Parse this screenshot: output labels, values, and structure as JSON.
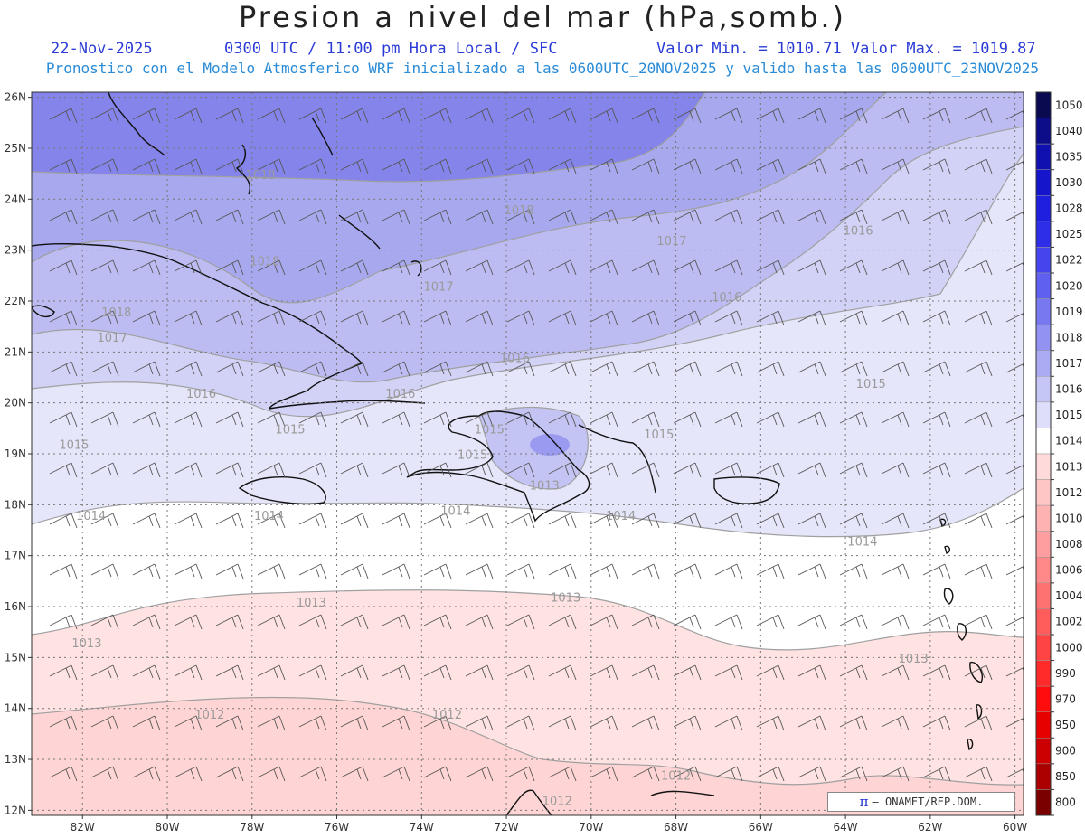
{
  "header": {
    "title": "Presion a nivel del mar (hPa,somb.)",
    "date": "22-Nov-2025",
    "time": "0300 UTC / 11:00 pm Hora Local / SFC",
    "min_max": "Valor Min. = 1010.71  Valor Max. = 1019.87",
    "model_info": "Pronostico con el Modelo Atmosferico WRF inicializado a las 0600UTC_20NOV2025 y valido hasta las  0600UTC_23NOV2025"
  },
  "map": {
    "lon_range": [
      -83.2,
      -59.8
    ],
    "lat_range": [
      11.9,
      26.1
    ],
    "lon_ticks": [
      "82W",
      "80W",
      "78W",
      "76W",
      "74W",
      "72W",
      "70W",
      "68W",
      "66W",
      "64W",
      "62W",
      "60W"
    ],
    "lon_tick_values": [
      -82,
      -80,
      -78,
      -76,
      -74,
      -72,
      -70,
      -68,
      -66,
      -64,
      -62,
      -60
    ],
    "lat_ticks": [
      "26N",
      "25N",
      "24N",
      "23N",
      "22N",
      "21N",
      "20N",
      "19N",
      "18N",
      "17N",
      "16N",
      "15N",
      "14N",
      "13N",
      "12N"
    ],
    "lat_tick_values": [
      26,
      25,
      24,
      23,
      22,
      21,
      20,
      19,
      18,
      17,
      16,
      15,
      14,
      13,
      12
    ],
    "contour_labels": [
      {
        "text": "1018",
        "lon": -77.8,
        "lat": 24.4
      },
      {
        "text": "1018",
        "lon": -71.7,
        "lat": 23.7
      },
      {
        "text": "1017",
        "lon": -68.1,
        "lat": 23.1
      },
      {
        "text": "1016",
        "lon": -63.7,
        "lat": 23.3
      },
      {
        "text": "1018",
        "lon": -77.7,
        "lat": 22.7
      },
      {
        "text": "1017",
        "lon": -73.6,
        "lat": 22.2
      },
      {
        "text": "1016",
        "lon": -66.8,
        "lat": 22.0
      },
      {
        "text": "1018",
        "lon": -81.2,
        "lat": 21.7
      },
      {
        "text": "1017",
        "lon": -81.3,
        "lat": 21.2
      },
      {
        "text": "1016",
        "lon": -71.8,
        "lat": 20.8
      },
      {
        "text": "1015",
        "lon": -63.4,
        "lat": 20.3
      },
      {
        "text": "1016",
        "lon": -79.2,
        "lat": 20.1
      },
      {
        "text": "1016",
        "lon": -74.5,
        "lat": 20.1
      },
      {
        "text": "1015",
        "lon": -77.1,
        "lat": 19.4
      },
      {
        "text": "1015",
        "lon": -72.4,
        "lat": 19.4
      },
      {
        "text": "1015",
        "lon": -68.4,
        "lat": 19.3
      },
      {
        "text": "1015",
        "lon": -82.2,
        "lat": 19.1
      },
      {
        "text": "1015",
        "lon": -72.8,
        "lat": 18.9
      },
      {
        "text": "1013",
        "lon": -71.1,
        "lat": 18.3
      },
      {
        "text": "1014",
        "lon": -81.8,
        "lat": 17.7
      },
      {
        "text": "1014",
        "lon": -77.6,
        "lat": 17.7
      },
      {
        "text": "1014",
        "lon": -73.2,
        "lat": 17.8
      },
      {
        "text": "1014",
        "lon": -69.3,
        "lat": 17.7
      },
      {
        "text": "1014",
        "lon": -63.6,
        "lat": 17.2
      },
      {
        "text": "1013",
        "lon": -76.6,
        "lat": 16.0
      },
      {
        "text": "1013",
        "lon": -70.6,
        "lat": 16.1
      },
      {
        "text": "1013",
        "lon": -81.9,
        "lat": 15.2
      },
      {
        "text": "1013",
        "lon": -62.4,
        "lat": 14.9
      },
      {
        "text": "1012",
        "lon": -79.0,
        "lat": 13.8
      },
      {
        "text": "1012",
        "lon": -73.4,
        "lat": 13.8
      },
      {
        "text": "1012",
        "lon": -68.0,
        "lat": 12.6
      },
      {
        "text": "1012",
        "lon": -70.8,
        "lat": 12.1
      }
    ]
  },
  "colorbar": {
    "levels": [
      "1050",
      "1040",
      "1035",
      "1030",
      "1028",
      "1025",
      "1022",
      "1020",
      "1019",
      "1018",
      "1017",
      "1016",
      "1015",
      "1014",
      "1013",
      "1012",
      "1010",
      "1008",
      "1006",
      "1004",
      "1002",
      "1000",
      "990",
      "970",
      "950",
      "900",
      "850",
      "800"
    ],
    "colors": [
      "#0a0a50",
      "#0d0d8a",
      "#1010b0",
      "#1515cc",
      "#1f1fe0",
      "#2e2ee8",
      "#4545ee",
      "#6060f0",
      "#7878f0",
      "#9292f2",
      "#ababf4",
      "#c6c6f6",
      "#dedefa",
      "#ffffff",
      "#ffdada",
      "#ffc6c6",
      "#ffb2b2",
      "#ff9e9e",
      "#ff8888",
      "#ff7272",
      "#ff5c5c",
      "#ff4444",
      "#ff2a2a",
      "#ff0c0c",
      "#e60000",
      "#cc0000",
      "#aa0000",
      "#7a0000"
    ]
  },
  "credit": {
    "symbol": "π",
    "text": "–  ONAMET/REP.DOM."
  }
}
